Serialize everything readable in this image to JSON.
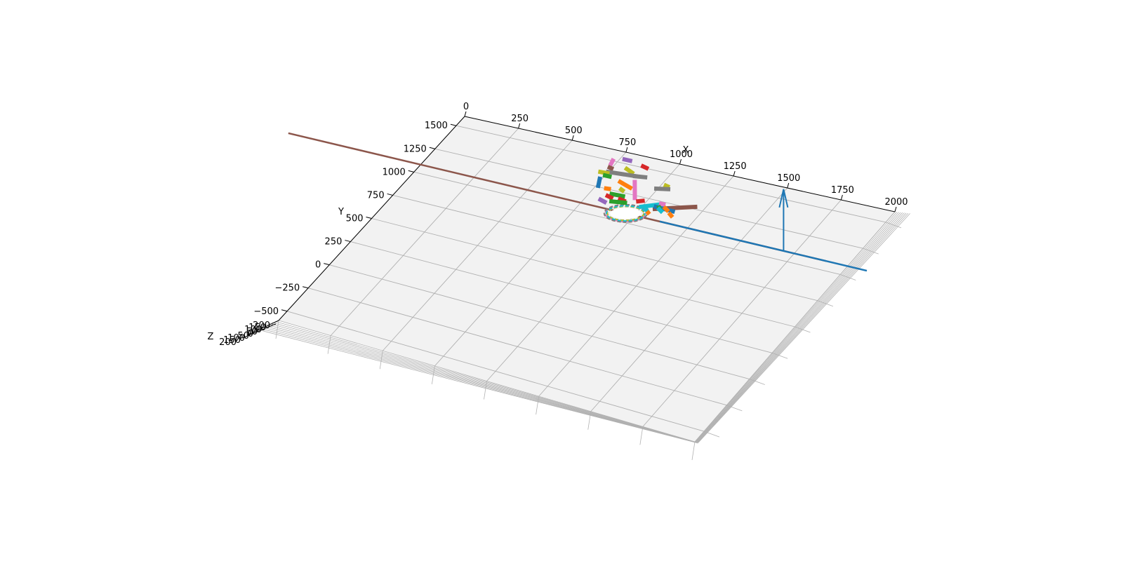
{
  "chart_data": {
    "type": "line",
    "projection": "3d",
    "grid": true,
    "legend": "none",
    "pane_color": "#f2f2f2",
    "grid_color": "#b0b0b0",
    "x_axis": {
      "label": "X",
      "range": [
        0,
        2000
      ],
      "ticks": [
        0,
        250,
        500,
        750,
        1000,
        1250,
        1500,
        1750,
        2000
      ],
      "tick_labels": [
        "0",
        "250",
        "500",
        "750",
        "1000",
        "1250",
        "1500",
        "1750",
        "2000"
      ]
    },
    "y_axis": {
      "label": "Y",
      "range": [
        -600,
        1600
      ],
      "ticks": [
        -500,
        -250,
        0,
        250,
        500,
        750,
        1000,
        1250,
        1500
      ],
      "tick_labels": [
        "−500",
        "−250",
        "0",
        "250",
        "500",
        "750",
        "1000",
        "1250",
        "1500"
      ]
    },
    "z_axis": {
      "label": "Z",
      "range": [
        -200,
        200
      ],
      "ticks": [
        -200,
        -150,
        -100,
        -50,
        0,
        50,
        100,
        150,
        200
      ],
      "tick_labels": [
        "200",
        "150",
        "100",
        "50",
        "0",
        "50",
        "100",
        "150",
        "200"
      ]
    },
    "palette": [
      "#1f77b4",
      "#ff7f0e",
      "#2ca02c",
      "#d62728",
      "#9467bd",
      "#8c564b",
      "#e377c2",
      "#7f7f7f",
      "#bcbd22",
      "#17becf"
    ],
    "center_ring": {
      "x": 960,
      "y": 1080,
      "z": 0,
      "radius": 60
    },
    "horizontal_lines": [
      {
        "color": "#8c564b",
        "x": [
          -620,
          1900
        ],
        "y": 1080,
        "z": 0
      },
      {
        "color": "#1f77b4",
        "x": [
          1120,
          2090
        ],
        "y": 1080,
        "z": 0
      }
    ],
    "arrow": {
      "color": "#1f77b4",
      "x": 1700,
      "y": 1080,
      "z": [
        0,
        160
      ]
    },
    "sticks": [
      {
        "color": "#e377c2",
        "p1": [
          725,
          1520
        ],
        "p2": [
          735,
          1455
        ]
      },
      {
        "color": "#9467bd",
        "p1": [
          760,
          1535
        ],
        "p2": [
          805,
          1535
        ]
      },
      {
        "color": "#d62728",
        "p1": [
          855,
          1515
        ],
        "p2": [
          895,
          1500
        ]
      },
      {
        "color": "#8c564b",
        "p1": [
          730,
          1440
        ],
        "p2": [
          760,
          1430
        ]
      },
      {
        "color": "#bcbd22",
        "p1": [
          800,
          1465
        ],
        "p2": [
          855,
          1430
        ]
      },
      {
        "color": "#7f7f7f",
        "p1": [
          740,
          1395
        ],
        "p2": [
          880,
          1415
        ]
      },
      {
        "color": "#7f7f7f",
        "p1": [
          860,
          1410
        ],
        "p2": [
          920,
          1425
        ]
      },
      {
        "color": "#bcbd22",
        "p1": [
          710,
          1380
        ],
        "p2": [
          760,
          1385
        ]
      },
      {
        "color": "#2ca02c",
        "p1": [
          740,
          1360
        ],
        "p2": [
          780,
          1360
        ]
      },
      {
        "color": "#ff7f0e",
        "p1": [
          820,
          1340
        ],
        "p2": [
          900,
          1300
        ]
      },
      {
        "color": "#1f77b4",
        "p1": [
          735,
          1340
        ],
        "p2": [
          765,
          1240
        ]
      },
      {
        "color": "#e377c2",
        "p1": [
          880,
          1380
        ],
        "p2": [
          950,
          1210
        ]
      },
      {
        "color": "#bcbd22",
        "p1": [
          1010,
          1395
        ],
        "p2": [
          1040,
          1385
        ]
      },
      {
        "color": "#7f7f7f",
        "p1": [
          985,
          1345
        ],
        "p2": [
          1050,
          1370
        ]
      },
      {
        "color": "#8c564b",
        "p1": [
          1050,
          1170
        ],
        "p2": [
          1215,
          1275
        ]
      },
      {
        "color": "#17becf",
        "p1": [
          990,
          1160
        ],
        "p2": [
          1065,
          1225
        ]
      },
      {
        "color": "#ff7f0e",
        "p1": [
          790,
          1250
        ],
        "p2": [
          820,
          1255
        ]
      },
      {
        "color": "#bcbd22",
        "p1": [
          850,
          1280
        ],
        "p2": [
          880,
          1260
        ]
      },
      {
        "color": "#2ca02c",
        "p1": [
          830,
          1215
        ],
        "p2": [
          900,
          1220
        ]
      },
      {
        "color": "#d62728",
        "p1": [
          820,
          1195
        ],
        "p2": [
          860,
          1180
        ]
      },
      {
        "color": "#d62728",
        "p1": [
          880,
          1190
        ],
        "p2": [
          920,
          1180
        ]
      },
      {
        "color": "#2ca02c",
        "p1": [
          855,
          1150
        ],
        "p2": [
          930,
          1170
        ]
      },
      {
        "color": "#9467bd",
        "p1": [
          805,
          1150
        ],
        "p2": [
          850,
          1130
        ]
      },
      {
        "color": "#e377c2",
        "p1": [
          1055,
          1230
        ],
        "p2": [
          1085,
          1230
        ]
      },
      {
        "color": "#1f77b4",
        "p1": [
          1045,
          1195
        ],
        "p2": [
          1145,
          1190
        ]
      },
      {
        "color": "#17becf",
        "p1": [
          1010,
          1175
        ],
        "p2": [
          1045,
          1130
        ]
      },
      {
        "color": "#ff7f0e",
        "p1": [
          1035,
          1140
        ],
        "p2": [
          1055,
          1120
        ]
      },
      {
        "color": "#2ca02c",
        "p1": [
          1060,
          1210
        ],
        "p2": [
          1080,
          1180
        ]
      },
      {
        "color": "#ff7f0e",
        "p1": [
          1085,
          1210
        ],
        "p2": [
          1120,
          1180
        ]
      },
      {
        "color": "#17becf",
        "p1": [
          1065,
          1190
        ],
        "p2": [
          1100,
          1160
        ]
      },
      {
        "color": "#ff7f0e",
        "p1": [
          1125,
          1170
        ],
        "p2": [
          1155,
          1140
        ]
      },
      {
        "color": "#d62728",
        "p1": [
          960,
          1200
        ],
        "p2": [
          990,
          1225
        ]
      }
    ]
  }
}
